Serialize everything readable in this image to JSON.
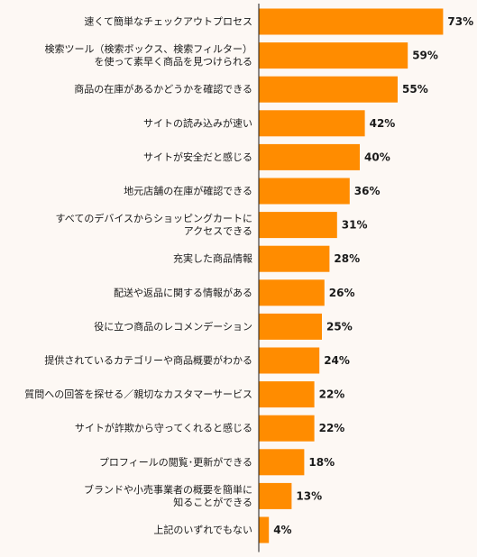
{
  "chart_data": {
    "type": "bar",
    "orientation": "horizontal",
    "title": "",
    "xlabel": "",
    "ylabel": "",
    "xlim": [
      0,
      100
    ],
    "grid": false,
    "legend": "none",
    "bar_color": "#ff8c00",
    "axis_color": "#1a1a1a",
    "categories": [
      [
        "速くて簡単なチェックアウトプロセス"
      ],
      [
        "検索ツール（検索ボックス、検索フィルター）",
        "を使って素早く商品を見つけられる"
      ],
      [
        "商品の在庫があるかどうかを確認できる"
      ],
      [
        "サイトの読み込みが速い"
      ],
      [
        "サイトが安全だと感じる"
      ],
      [
        "地元店舗の在庫が確認できる"
      ],
      [
        "すべてのデバイスからショッピングカートに",
        "アクセスできる"
      ],
      [
        "充実した商品情報"
      ],
      [
        "配送や返品に関する情報がある"
      ],
      [
        "役に立つ商品のレコメンデーション"
      ],
      [
        "提供されているカテゴリーや商品概要がわかる"
      ],
      [
        "質問への回答を探せる／親切なカスタマーサービス"
      ],
      [
        "サイトが詐欺から守ってくれると感じる"
      ],
      [
        "プロフィールの閲覧･更新ができる"
      ],
      [
        "ブランドや小売事業者の概要を簡単に",
        "知ることができる"
      ],
      [
        "上記のいずれでもない"
      ]
    ],
    "values": [
      73,
      59,
      55,
      42,
      40,
      36,
      31,
      28,
      26,
      25,
      24,
      22,
      22,
      18,
      13,
      4
    ],
    "value_labels": [
      "73%",
      "59%",
      "55%",
      "42%",
      "40%",
      "36%",
      "31%",
      "28%",
      "26%",
      "25%",
      "24%",
      "22%",
      "22%",
      "18%",
      "13%",
      "4%"
    ]
  }
}
